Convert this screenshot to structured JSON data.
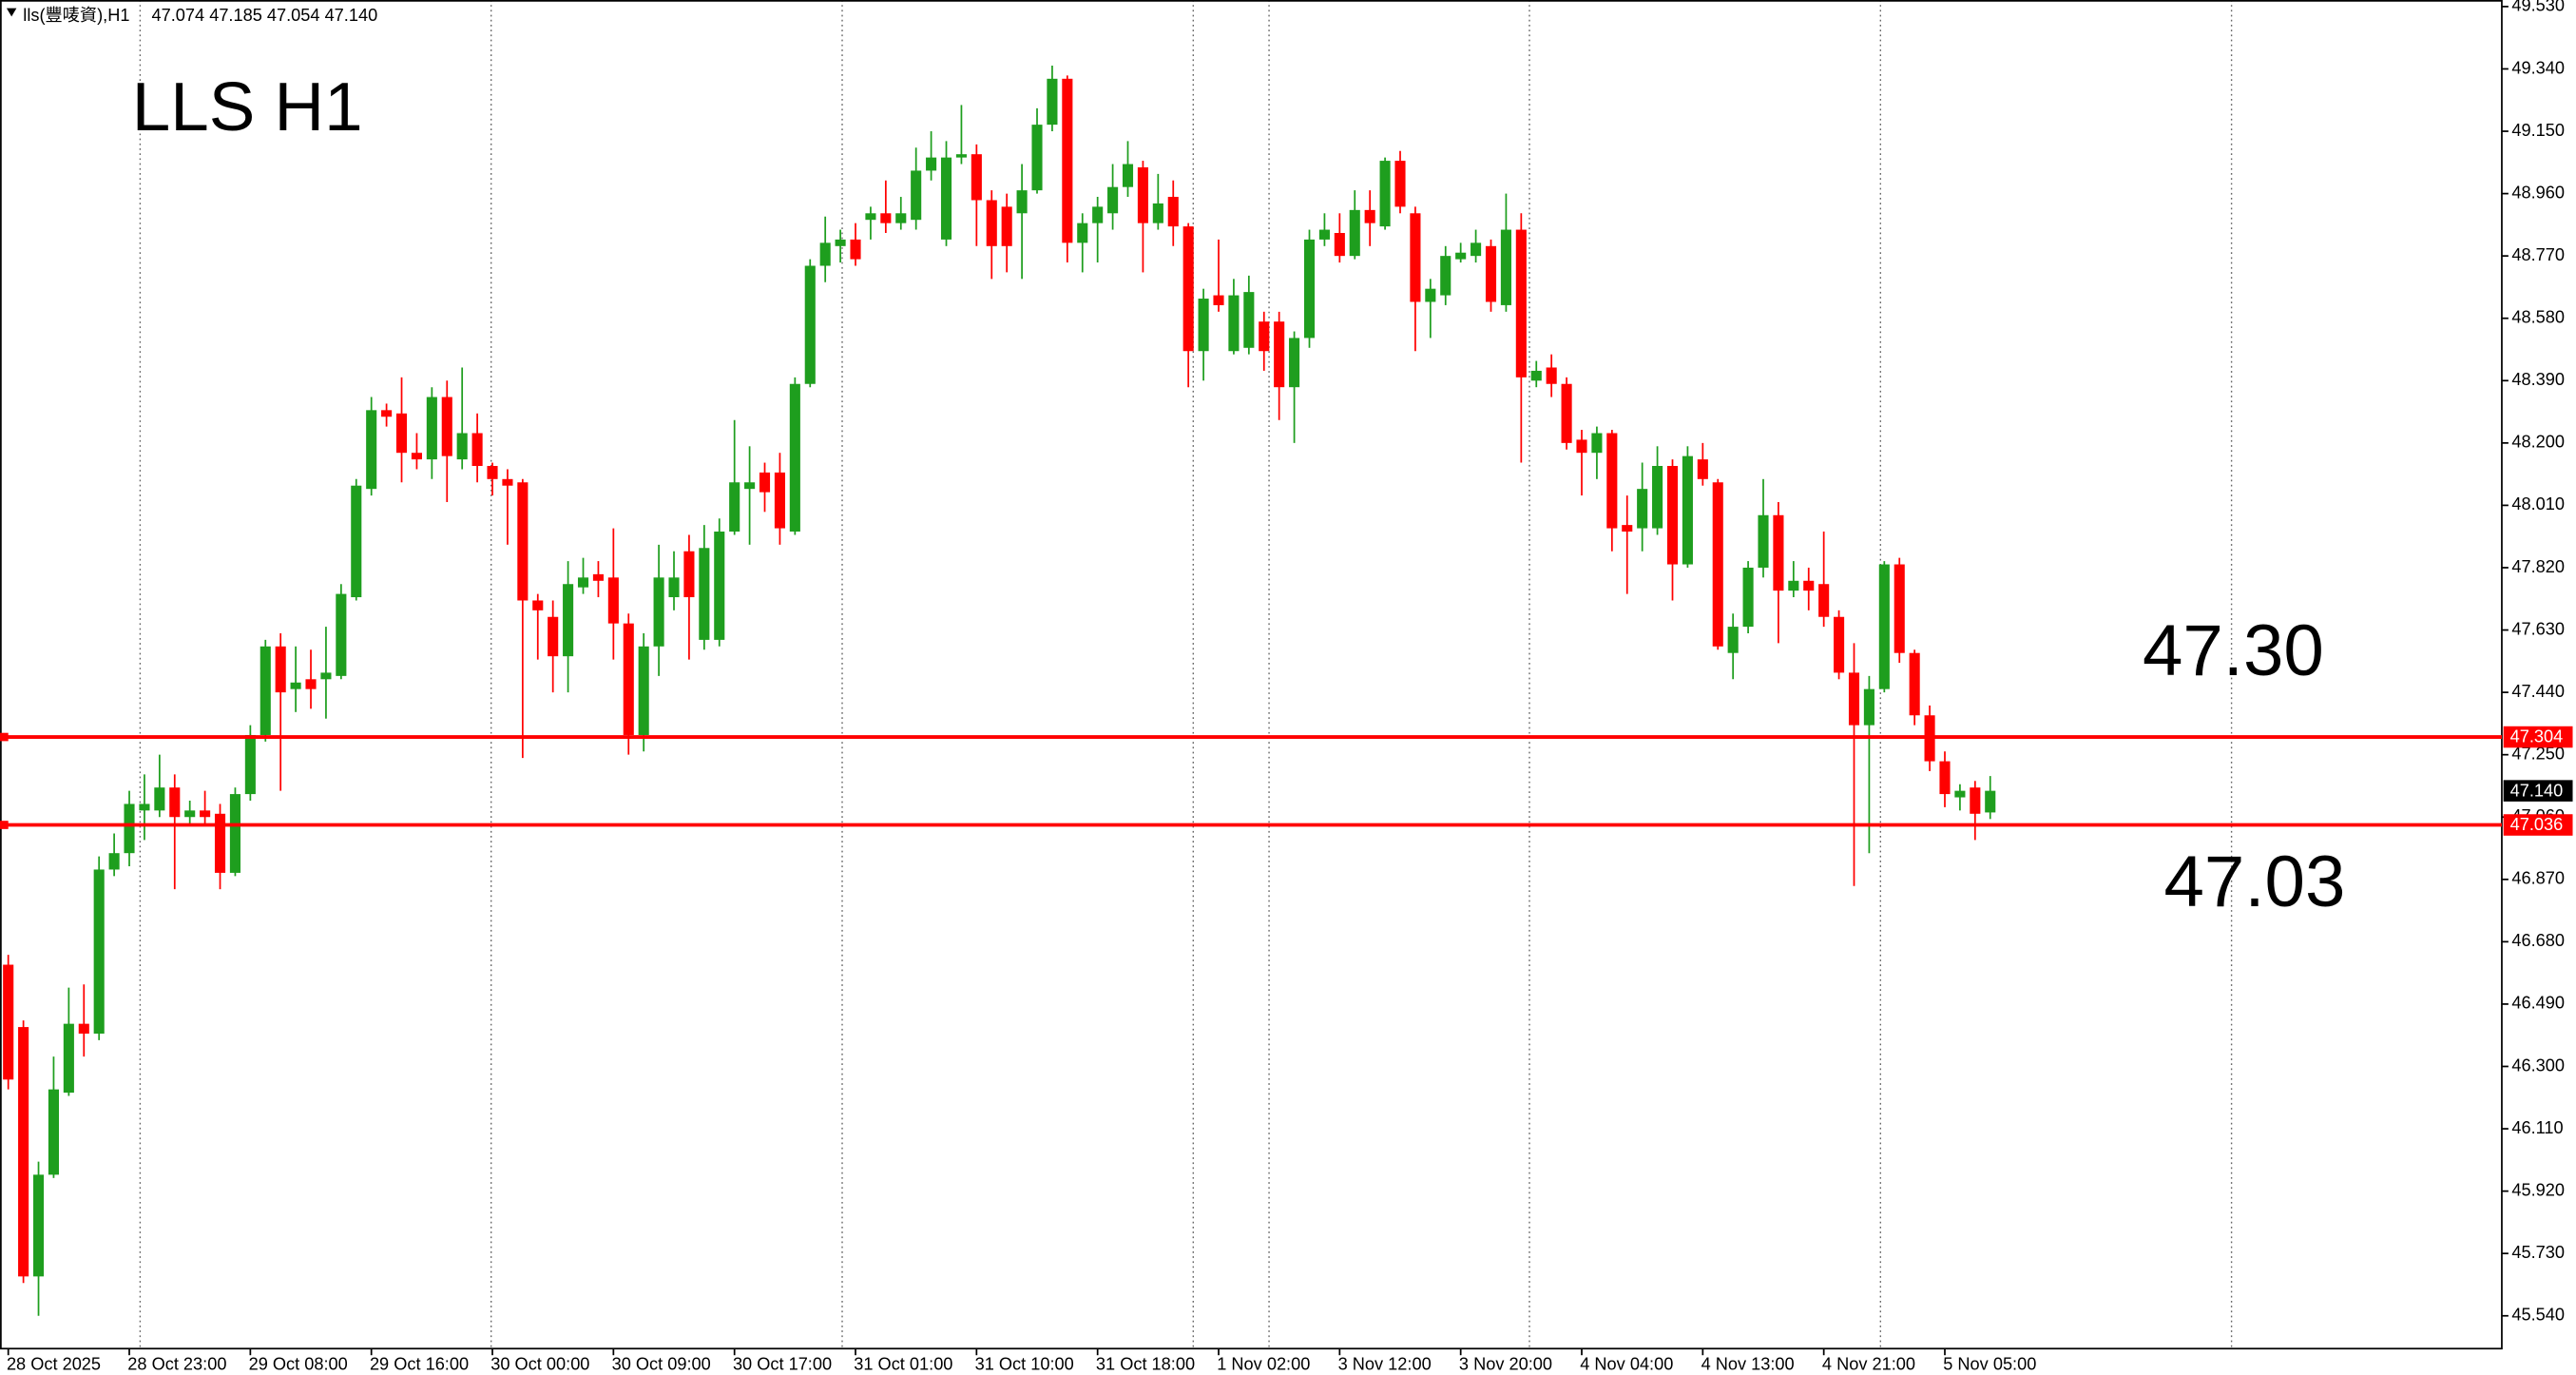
{
  "chart_data": {
    "type": "candlestick",
    "title": "LLS  H1",
    "header": "lls(豐唛資),H1",
    "header_ohlc": "47.074 47.185 47.054 47.140",
    "up_color": "#1e9e1e",
    "down_color": "#ff0000",
    "categories": [
      "28 Oct 2025",
      null,
      null,
      null,
      null,
      null,
      null,
      null,
      "28 Oct 23:00",
      null,
      null,
      null,
      null,
      null,
      null,
      null,
      "29 Oct 08:00",
      null,
      null,
      null,
      null,
      null,
      null,
      null,
      "29 Oct 16:00",
      null,
      null,
      null,
      null,
      null,
      null,
      null,
      "30 Oct 00:00",
      null,
      null,
      null,
      null,
      null,
      null,
      null,
      "30 Oct 09:00",
      null,
      null,
      null,
      null,
      null,
      null,
      null,
      "30 Oct 17:00",
      null,
      null,
      null,
      null,
      null,
      null,
      null,
      "31 Oct 01:00",
      null,
      null,
      null,
      null,
      null,
      null,
      null,
      "31 Oct 10:00",
      null,
      null,
      null,
      null,
      null,
      null,
      null,
      "31 Oct 18:00",
      null,
      null,
      null,
      null,
      null,
      null,
      null,
      "1 Nov 02:00",
      null,
      null,
      null,
      null,
      null,
      null,
      null,
      "3 Nov 12:00",
      null,
      null,
      null,
      null,
      null,
      null,
      null,
      "3 Nov 20:00",
      null,
      null,
      null,
      null,
      null,
      null,
      null,
      "4 Nov 04:00",
      null,
      null,
      null,
      null,
      null,
      null,
      null,
      "4 Nov 13:00",
      null,
      null,
      null,
      null,
      null,
      null,
      null,
      "4 Nov 21:00",
      null,
      null,
      null,
      null,
      null,
      null,
      null,
      "5 Nov 05:00",
      null,
      null,
      null
    ],
    "open": [
      46.61,
      46.42,
      45.66,
      45.97,
      46.22,
      46.43,
      46.4,
      46.9,
      46.95,
      47.08,
      47.08,
      47.15,
      47.06,
      47.08,
      47.07,
      46.89,
      47.13,
      47.31,
      47.58,
      47.45,
      47.48,
      47.48,
      47.49,
      47.73,
      48.06,
      48.3,
      48.29,
      48.17,
      48.15,
      48.34,
      48.15,
      48.23,
      48.13,
      48.09,
      48.08,
      47.72,
      47.67,
      47.55,
      47.76,
      47.8,
      47.79,
      47.65,
      47.31,
      47.58,
      47.73,
      47.87,
      47.6,
      47.6,
      47.93,
      48.06,
      48.11,
      48.11,
      47.93,
      48.38,
      48.74,
      48.8,
      48.82,
      48.88,
      48.9,
      48.87,
      48.88,
      49.03,
      48.82,
      49.07,
      49.08,
      48.94,
      48.92,
      48.9,
      48.97,
      49.17,
      49.31,
      48.81,
      48.87,
      48.9,
      48.98,
      49.04,
      48.87,
      48.95,
      48.86,
      48.48,
      48.65,
      48.48,
      48.49,
      48.57,
      48.57,
      48.37,
      48.52,
      48.82,
      48.84,
      48.77,
      48.91,
      48.86,
      49.06,
      48.9,
      48.63,
      48.65,
      48.76,
      48.77,
      48.8,
      48.62,
      48.85,
      48.39,
      48.43,
      48.38,
      48.21,
      48.17,
      48.23,
      47.95,
      47.94,
      47.94,
      48.13,
      47.83,
      48.15,
      48.08,
      47.56,
      47.64,
      47.82,
      47.98,
      47.75,
      47.78,
      47.77,
      47.67,
      47.5,
      47.34,
      47.45,
      47.83,
      47.56,
      47.37,
      47.23,
      47.12,
      47.15,
      47.074
    ],
    "high": [
      46.64,
      46.44,
      46.01,
      46.33,
      46.54,
      46.55,
      46.94,
      47.01,
      47.14,
      47.19,
      47.25,
      47.19,
      47.11,
      47.14,
      47.1,
      47.15,
      47.34,
      47.6,
      47.62,
      47.58,
      47.57,
      47.64,
      47.77,
      48.09,
      48.34,
      48.32,
      48.4,
      48.23,
      48.37,
      48.39,
      48.43,
      48.29,
      48.14,
      48.12,
      48.09,
      47.74,
      47.72,
      47.84,
      47.85,
      47.84,
      47.94,
      47.68,
      47.62,
      47.89,
      47.87,
      47.92,
      47.95,
      47.97,
      48.27,
      48.19,
      48.14,
      48.17,
      48.4,
      48.76,
      48.89,
      48.85,
      48.87,
      48.92,
      49.0,
      48.95,
      49.1,
      49.15,
      49.12,
      49.23,
      49.11,
      48.97,
      48.96,
      49.05,
      49.22,
      49.35,
      49.32,
      48.9,
      48.95,
      49.05,
      49.12,
      49.06,
      49.02,
      49.0,
      48.87,
      48.67,
      48.82,
      48.7,
      48.71,
      48.6,
      48.6,
      48.54,
      48.85,
      48.9,
      48.9,
      48.97,
      48.97,
      49.07,
      49.09,
      48.92,
      48.7,
      48.8,
      48.81,
      48.85,
      48.82,
      48.96,
      48.9,
      48.45,
      48.47,
      48.4,
      48.24,
      48.25,
      48.24,
      48.04,
      48.14,
      48.19,
      48.15,
      48.19,
      48.2,
      48.09,
      47.68,
      47.84,
      48.09,
      48.02,
      47.84,
      47.82,
      47.93,
      47.69,
      47.59,
      47.49,
      47.84,
      47.85,
      47.57,
      47.4,
      47.26,
      47.16,
      47.17,
      47.185
    ],
    "low": [
      46.23,
      45.64,
      45.54,
      45.96,
      46.21,
      46.33,
      46.38,
      46.88,
      46.91,
      46.99,
      47.06,
      46.84,
      47.04,
      47.04,
      46.84,
      46.88,
      47.11,
      47.29,
      47.14,
      47.38,
      47.39,
      47.36,
      47.48,
      47.72,
      48.04,
      48.25,
      48.08,
      48.12,
      48.09,
      48.02,
      48.12,
      48.08,
      48.04,
      47.89,
      47.24,
      47.54,
      47.44,
      47.44,
      47.74,
      47.73,
      47.54,
      47.25,
      47.26,
      47.49,
      47.69,
      47.54,
      47.57,
      47.58,
      47.92,
      47.89,
      47.99,
      47.89,
      47.92,
      48.37,
      48.69,
      48.75,
      48.74,
      48.82,
      48.84,
      48.85,
      48.85,
      49.0,
      48.8,
      49.05,
      48.8,
      48.7,
      48.72,
      48.7,
      48.96,
      49.15,
      48.75,
      48.72,
      48.75,
      48.85,
      48.95,
      48.72,
      48.85,
      48.8,
      48.37,
      48.39,
      48.6,
      48.47,
      48.47,
      48.42,
      48.27,
      48.2,
      48.49,
      48.8,
      48.75,
      48.76,
      48.8,
      48.85,
      48.9,
      48.48,
      48.52,
      48.62,
      48.75,
      48.75,
      48.6,
      48.6,
      48.14,
      48.37,
      48.34,
      48.18,
      48.04,
      48.09,
      47.87,
      47.74,
      47.87,
      47.92,
      47.72,
      47.82,
      48.07,
      47.57,
      47.48,
      47.62,
      47.79,
      47.59,
      47.73,
      47.69,
      47.64,
      47.48,
      46.85,
      46.95,
      47.44,
      47.53,
      47.34,
      47.2,
      47.09,
      47.08,
      46.99,
      47.054
    ],
    "close": [
      46.26,
      45.66,
      45.97,
      46.23,
      46.43,
      46.4,
      46.9,
      46.95,
      47.1,
      47.1,
      47.15,
      47.06,
      47.08,
      47.06,
      46.89,
      47.13,
      47.31,
      47.58,
      47.44,
      47.47,
      47.45,
      47.5,
      47.74,
      48.07,
      48.3,
      48.28,
      48.17,
      48.15,
      48.34,
      48.16,
      48.23,
      48.13,
      48.09,
      48.07,
      47.72,
      47.69,
      47.55,
      47.77,
      47.79,
      47.78,
      47.65,
      47.31,
      47.58,
      47.79,
      47.79,
      47.73,
      47.88,
      47.93,
      48.08,
      48.08,
      48.05,
      47.94,
      48.38,
      48.74,
      48.81,
      48.82,
      48.76,
      48.9,
      48.87,
      48.9,
      49.03,
      49.07,
      49.07,
      49.08,
      48.94,
      48.8,
      48.8,
      48.97,
      49.17,
      49.31,
      48.81,
      48.87,
      48.92,
      48.98,
      49.05,
      48.87,
      48.93,
      48.86,
      48.48,
      48.64,
      48.62,
      48.65,
      48.66,
      48.48,
      48.37,
      48.52,
      48.82,
      48.85,
      48.77,
      48.91,
      48.87,
      49.06,
      48.92,
      48.63,
      48.67,
      48.77,
      48.78,
      48.81,
      48.63,
      48.85,
      48.4,
      48.42,
      48.38,
      48.2,
      48.17,
      48.23,
      47.94,
      47.93,
      48.06,
      48.13,
      47.83,
      48.16,
      48.09,
      47.58,
      47.64,
      47.82,
      47.98,
      47.75,
      47.78,
      47.75,
      47.67,
      47.5,
      47.34,
      47.45,
      47.83,
      47.56,
      47.37,
      47.23,
      47.13,
      47.14,
      47.07,
      47.14
    ],
    "ylim": [
      45.44,
      49.55
    ],
    "yticks": [
      {
        "value": 49.53,
        "label": "49.530"
      },
      {
        "value": 49.34,
        "label": "49.340"
      },
      {
        "value": 49.15,
        "label": "49.150"
      },
      {
        "value": 48.96,
        "label": "48.960"
      },
      {
        "value": 48.77,
        "label": "48.770"
      },
      {
        "value": 48.58,
        "label": "48.580"
      },
      {
        "value": 48.39,
        "label": "48.390"
      },
      {
        "value": 48.2,
        "label": "48.200"
      },
      {
        "value": 48.01,
        "label": "48.010"
      },
      {
        "value": 47.82,
        "label": "47.820"
      },
      {
        "value": 47.63,
        "label": "47.630"
      },
      {
        "value": 47.44,
        "label": "47.440"
      },
      {
        "value": 47.25,
        "label": "47.250"
      },
      {
        "value": 47.06,
        "label": "47.060"
      },
      {
        "value": 46.87,
        "label": "46.870"
      },
      {
        "value": 46.68,
        "label": "46.680"
      },
      {
        "value": 46.49,
        "label": "46.490"
      },
      {
        "value": 46.3,
        "label": "46.300"
      },
      {
        "value": 46.11,
        "label": "46.110"
      },
      {
        "value": 45.92,
        "label": "45.920"
      },
      {
        "value": 45.73,
        "label": "45.730"
      },
      {
        "value": 45.54,
        "label": "45.540"
      }
    ],
    "hlines": [
      {
        "value": 47.304,
        "label": "47.304",
        "color": "#ff0000"
      },
      {
        "value": 47.036,
        "label": "47.036",
        "color": "#ff0000"
      }
    ],
    "last_price": {
      "value": 47.14,
      "label": "47.140"
    },
    "annotations": [
      {
        "text": "47.30"
      },
      {
        "text": "47.03"
      }
    ]
  }
}
